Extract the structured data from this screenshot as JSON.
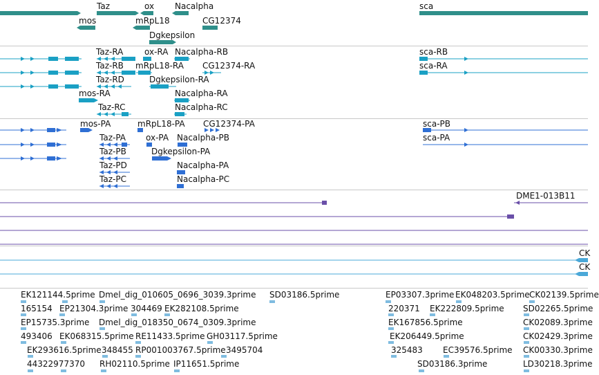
{
  "colors": {
    "gene": "#2f8f8a",
    "transcript": "#1aa0c4",
    "protein": "#2f6fd4",
    "cdna": "#6a4fa8",
    "est": "#4aa8d8",
    "est_reads": "#7fbce0",
    "separator": "#c8c8c8"
  },
  "tracks": {
    "genes": {
      "labels": [
        "Taz",
        "ox",
        "Nacalpha",
        "sca",
        "mos",
        "mRpL18",
        "CG12374",
        "Dgkepsilon"
      ]
    },
    "transcripts": {
      "labels": [
        "Taz-RA",
        "ox-RA",
        "Nacalpha-RB",
        "sca-RB",
        "Taz-RB",
        "mRpL18-RA",
        "CG12374-RA",
        "sca-RA",
        "Taz-RD",
        "Dgkepsilon-RA",
        "mos-RA",
        "Nacalpha-RA",
        "Taz-RC",
        "Nacalpha-RC"
      ]
    },
    "proteins": {
      "labels": [
        "mos-PA",
        "mRpL18-PA",
        "CG12374-PA",
        "sca-PB",
        "Taz-PA",
        "ox-PA",
        "Nacalpha-PB",
        "sca-PA",
        "Taz-PB",
        "Dgkepsilon-PA",
        "Taz-PD",
        "Nacalpha-PA",
        "Taz-PC",
        "Nacalpha-PC"
      ]
    },
    "cdna": {
      "labels": [
        "DME1-013B11"
      ]
    },
    "est_pairs": {
      "labels": [
        "CK",
        "CK"
      ]
    },
    "est_reads": {
      "labels": [
        "EK121144.5prime",
        "Dmel_dig_010605_0696_3039.3prime",
        "SD03186.5prime",
        "EP03307.3prime",
        "EK048203.5prime",
        "CK02139.5prime",
        "165154",
        "EP21304.3prime",
        "304469",
        "EK282108.5prime",
        "220371",
        "EK222809.5prime",
        "SD02265.5prime",
        "EP15735.3prime",
        "Dmel_dig_018350_0674_0309.3prime",
        "EK167856.5prime",
        "CK02089.3prime",
        "493406",
        "EK068315.5prime",
        "RE11433.5prime",
        "GH03117.5prime",
        "EK206449.5prime",
        "CK02429.3prime",
        "EK293616.5prime",
        "348455",
        "RP001003767.5prime",
        "3495704",
        "325483",
        "EC39576.5prime",
        "CK00330.3prime",
        "44322977370",
        "RH02110.5prime",
        "IP11651.5prime",
        "SD03186.3prime",
        "LD30218.3prime"
      ]
    }
  }
}
